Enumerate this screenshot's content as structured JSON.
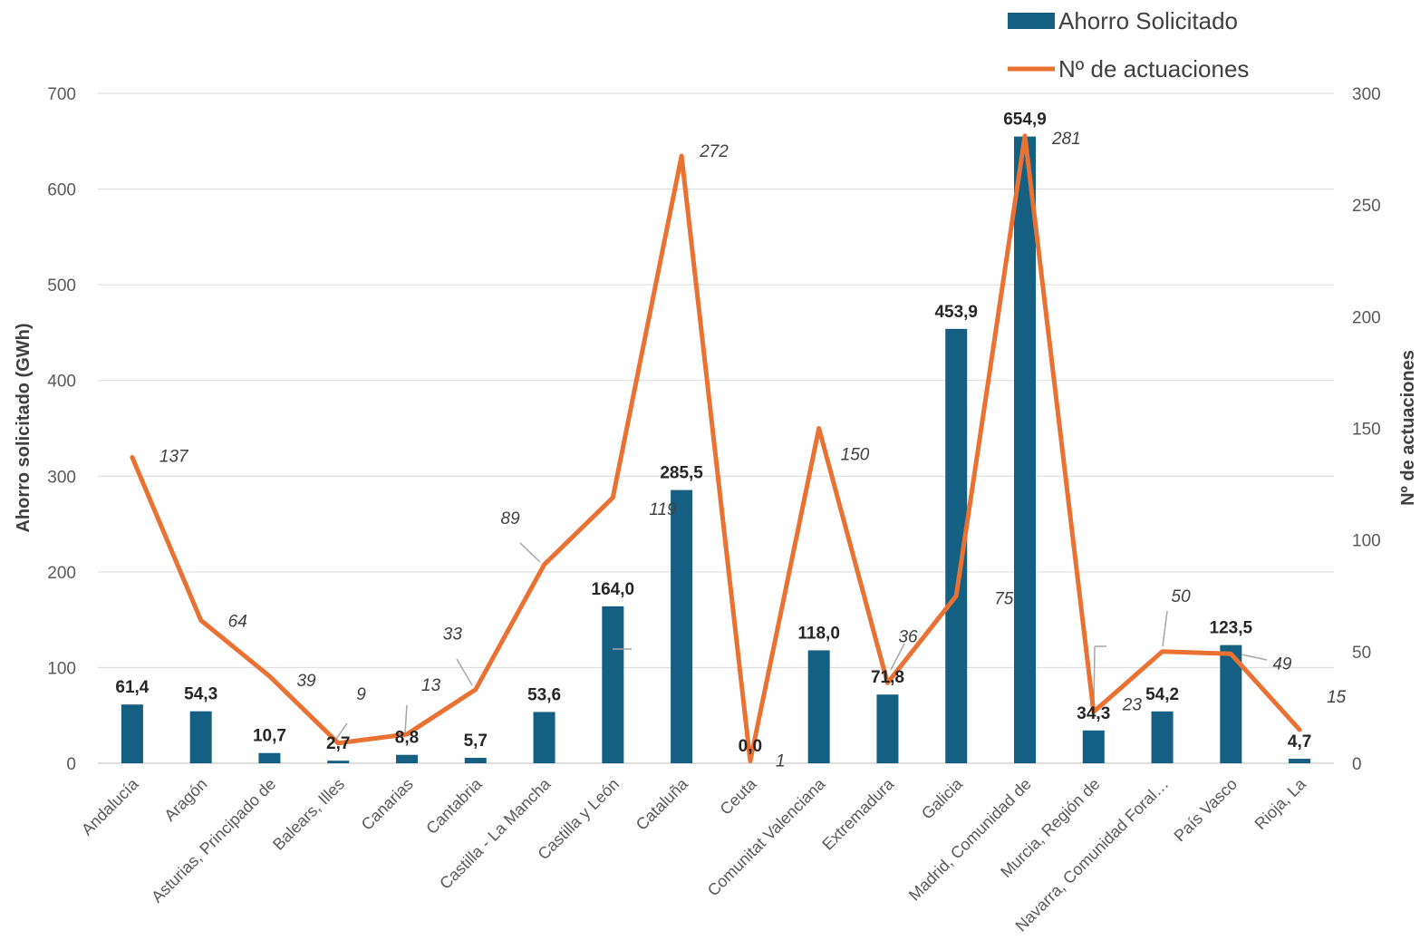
{
  "chart_data": {
    "type": "bar",
    "categories": [
      "Andalucía",
      "Aragón",
      "Asturias, Principado de",
      "Balears, Illes",
      "Canarias",
      "Cantabria",
      "Castilla - La Mancha",
      "Castilla y León",
      "Cataluña",
      "Ceuta",
      "Comunitat Valenciana",
      "Extremadura",
      "Galicia",
      "Madrid, Comunidad de",
      "Murcia, Región de",
      "Navarra, Comunidad Foral…",
      "País Vasco",
      "Rioja, La"
    ],
    "series": [
      {
        "name": "Ahorro Solicitado",
        "type": "bar",
        "axis": "left",
        "color": "#156082",
        "values": [
          61.4,
          54.3,
          10.7,
          2.7,
          8.8,
          5.7,
          53.6,
          164.0,
          285.5,
          0.0,
          118.0,
          71.8,
          453.9,
          654.9,
          34.3,
          54.2,
          123.5,
          4.7
        ],
        "labels": [
          "61,4",
          "54,3",
          "10,7",
          "2,7",
          "8,8",
          "5,7",
          "53,6",
          "164,0",
          "285,5",
          "0,0",
          "118,0",
          "71,8",
          "453,9",
          "654,9",
          "34,3",
          "54,2",
          "123,5",
          "4,7"
        ]
      },
      {
        "name": "Nº de actuaciones",
        "type": "line",
        "axis": "right",
        "color": "#E97132",
        "values": [
          137,
          64,
          39,
          9,
          13,
          33,
          89,
          119,
          272,
          1,
          150,
          36,
          75,
          281,
          23,
          50,
          49,
          15
        ],
        "labels": [
          "137",
          "64",
          "39",
          "9",
          "13",
          "33",
          "89",
          "119",
          "272",
          "1",
          "150",
          "36",
          "75",
          "281",
          "23",
          "50",
          "49",
          "15"
        ]
      }
    ],
    "ylabel": "Ahorro solicitado (GWh)",
    "y2label": "Nº de actuaciones",
    "ylim": [
      0,
      700
    ],
    "y2lim": [
      0,
      300
    ],
    "yticks": [
      "0",
      "100",
      "200",
      "300",
      "400",
      "500",
      "600",
      "700"
    ],
    "y2ticks": [
      "0",
      "50",
      "100",
      "150",
      "200",
      "250",
      "300"
    ],
    "grid": true,
    "legend_position": "top-right"
  }
}
